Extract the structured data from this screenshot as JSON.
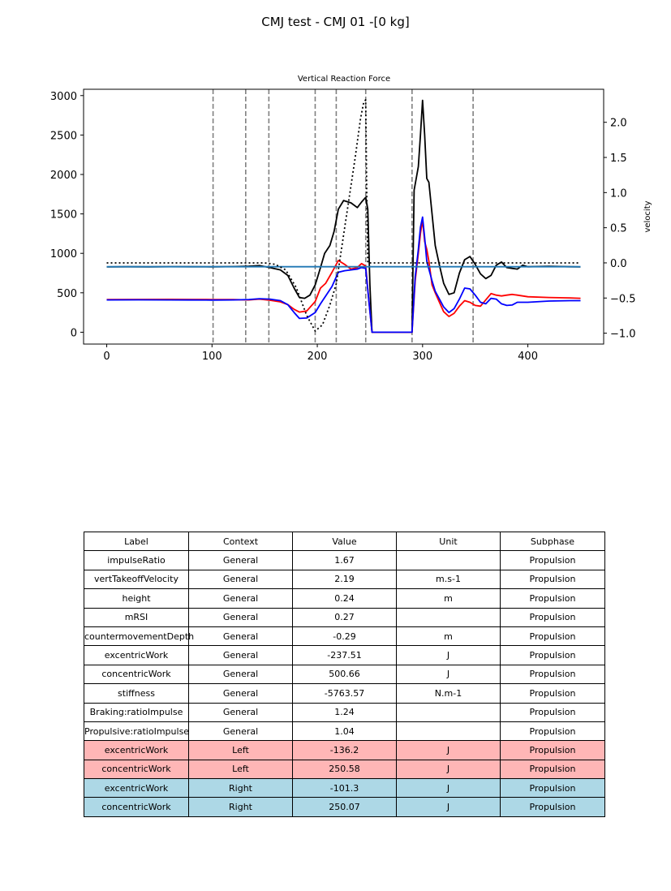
{
  "figure": {
    "title": "CMJ test - CMJ 01 -[0 kg]"
  },
  "chart_data": {
    "type": "line",
    "title": "Vertical Reaction Force",
    "xlabel": "",
    "ylabel": "",
    "y2label": "velocity",
    "xlim": [
      -22,
      472
    ],
    "ylim": [
      -150,
      3080
    ],
    "y2lim": [
      -1.155,
      2.47
    ],
    "x_ticks": [
      0,
      100,
      200,
      300,
      400
    ],
    "y_ticks": [
      0,
      500,
      1000,
      1500,
      2000,
      2500,
      3000
    ],
    "y2_ticks": [
      -1.0,
      -0.5,
      0.0,
      0.5,
      1.0,
      1.5,
      2.0
    ],
    "y2_tick_labels": [
      "−1.0",
      "−0.5",
      "0.0",
      "0.5",
      "1.0",
      "1.5",
      "2.0"
    ],
    "grid": false,
    "vlines": [
      101,
      132,
      154,
      198,
      218,
      246,
      290,
      348
    ],
    "series": [
      {
        "color": "#000000",
        "style": "solid",
        "axis": "left",
        "points": [
          [
            0,
            828
          ],
          [
            20,
            830
          ],
          [
            40,
            829
          ],
          [
            60,
            831
          ],
          [
            80,
            830
          ],
          [
            100,
            829
          ],
          [
            120,
            832
          ],
          [
            135,
            838
          ],
          [
            145,
            845
          ],
          [
            155,
            820
          ],
          [
            165,
            790
          ],
          [
            172,
            720
          ],
          [
            178,
            560
          ],
          [
            183,
            440
          ],
          [
            188,
            430
          ],
          [
            193,
            470
          ],
          [
            198,
            600
          ],
          [
            203,
            820
          ],
          [
            207,
            1000
          ],
          [
            212,
            1100
          ],
          [
            216,
            1280
          ],
          [
            220,
            1560
          ],
          [
            225,
            1670
          ],
          [
            232,
            1640
          ],
          [
            238,
            1580
          ],
          [
            242,
            1650
          ],
          [
            246,
            1710
          ],
          [
            248,
            1560
          ],
          [
            250,
            600
          ],
          [
            252,
            0
          ],
          [
            270,
            0
          ],
          [
            290,
            0
          ],
          [
            292,
            1800
          ],
          [
            294,
            1950
          ],
          [
            296,
            2100
          ],
          [
            298,
            2500
          ],
          [
            300,
            2940
          ],
          [
            302,
            2500
          ],
          [
            304,
            1950
          ],
          [
            306,
            1900
          ],
          [
            309,
            1500
          ],
          [
            312,
            1100
          ],
          [
            316,
            850
          ],
          [
            320,
            620
          ],
          [
            325,
            480
          ],
          [
            330,
            500
          ],
          [
            335,
            750
          ],
          [
            340,
            920
          ],
          [
            345,
            960
          ],
          [
            350,
            860
          ],
          [
            355,
            740
          ],
          [
            360,
            680
          ],
          [
            365,
            720
          ],
          [
            370,
            850
          ],
          [
            375,
            890
          ],
          [
            380,
            820
          ],
          [
            385,
            810
          ],
          [
            390,
            800
          ],
          [
            395,
            850
          ],
          [
            400,
            830
          ],
          [
            420,
            835
          ],
          [
            440,
            830
          ],
          [
            450,
            828
          ]
        ]
      },
      {
        "color": "#ff0000",
        "style": "solid",
        "axis": "left",
        "points": [
          [
            0,
            415
          ],
          [
            30,
            416
          ],
          [
            60,
            417
          ],
          [
            80,
            416
          ],
          [
            100,
            415
          ],
          [
            120,
            414
          ],
          [
            135,
            410
          ],
          [
            145,
            420
          ],
          [
            155,
            405
          ],
          [
            165,
            385
          ],
          [
            172,
            350
          ],
          [
            178,
            290
          ],
          [
            183,
            255
          ],
          [
            190,
            270
          ],
          [
            198,
            390
          ],
          [
            203,
            560
          ],
          [
            208,
            620
          ],
          [
            214,
            760
          ],
          [
            220,
            910
          ],
          [
            226,
            860
          ],
          [
            232,
            800
          ],
          [
            238,
            820
          ],
          [
            242,
            870
          ],
          [
            246,
            840
          ],
          [
            249,
            400
          ],
          [
            252,
            0
          ],
          [
            290,
            0
          ],
          [
            293,
            650
          ],
          [
            296,
            1000
          ],
          [
            298,
            1250
          ],
          [
            300,
            1420
          ],
          [
            302,
            1150
          ],
          [
            304,
            1050
          ],
          [
            306,
            900
          ],
          [
            309,
            600
          ],
          [
            312,
            500
          ],
          [
            316,
            380
          ],
          [
            320,
            260
          ],
          [
            325,
            200
          ],
          [
            330,
            240
          ],
          [
            335,
            330
          ],
          [
            340,
            400
          ],
          [
            345,
            380
          ],
          [
            350,
            340
          ],
          [
            355,
            330
          ],
          [
            360,
            410
          ],
          [
            365,
            490
          ],
          [
            370,
            470
          ],
          [
            375,
            460
          ],
          [
            380,
            470
          ],
          [
            385,
            480
          ],
          [
            390,
            470
          ],
          [
            400,
            450
          ],
          [
            420,
            440
          ],
          [
            440,
            435
          ],
          [
            450,
            430
          ]
        ]
      },
      {
        "color": "#0000ff",
        "style": "solid",
        "axis": "left",
        "points": [
          [
            0,
            410
          ],
          [
            30,
            411
          ],
          [
            60,
            410
          ],
          [
            80,
            409
          ],
          [
            100,
            408
          ],
          [
            120,
            410
          ],
          [
            135,
            415
          ],
          [
            145,
            425
          ],
          [
            155,
            420
          ],
          [
            165,
            400
          ],
          [
            172,
            350
          ],
          [
            178,
            250
          ],
          [
            183,
            175
          ],
          [
            190,
            180
          ],
          [
            198,
            250
          ],
          [
            203,
            360
          ],
          [
            208,
            460
          ],
          [
            214,
            580
          ],
          [
            220,
            760
          ],
          [
            226,
            780
          ],
          [
            232,
            790
          ],
          [
            238,
            800
          ],
          [
            242,
            820
          ],
          [
            246,
            810
          ],
          [
            249,
            400
          ],
          [
            252,
            0
          ],
          [
            290,
            0
          ],
          [
            293,
            700
          ],
          [
            296,
            1050
          ],
          [
            298,
            1330
          ],
          [
            300,
            1460
          ],
          [
            302,
            1200
          ],
          [
            304,
            900
          ],
          [
            306,
            800
          ],
          [
            309,
            650
          ],
          [
            312,
            520
          ],
          [
            316,
            420
          ],
          [
            320,
            320
          ],
          [
            325,
            250
          ],
          [
            330,
            300
          ],
          [
            335,
            420
          ],
          [
            340,
            560
          ],
          [
            345,
            550
          ],
          [
            350,
            470
          ],
          [
            355,
            380
          ],
          [
            360,
            360
          ],
          [
            365,
            430
          ],
          [
            370,
            420
          ],
          [
            375,
            360
          ],
          [
            380,
            340
          ],
          [
            385,
            345
          ],
          [
            390,
            380
          ],
          [
            400,
            380
          ],
          [
            420,
            395
          ],
          [
            440,
            400
          ],
          [
            450,
            400
          ]
        ]
      },
      {
        "color": "#1f77b4",
        "style": "solid",
        "axis": "left",
        "points": [
          [
            0,
            830
          ],
          [
            450,
            830
          ]
        ]
      },
      {
        "color": "#000000",
        "style": "dotted",
        "axis": "right",
        "points": [
          [
            0,
            0.0
          ],
          [
            100,
            0.0
          ],
          [
            150,
            0.0
          ],
          [
            160,
            -0.02
          ],
          [
            170,
            -0.1
          ],
          [
            180,
            -0.35
          ],
          [
            190,
            -0.75
          ],
          [
            198,
            -0.97
          ],
          [
            205,
            -0.88
          ],
          [
            212,
            -0.6
          ],
          [
            218,
            -0.3
          ],
          [
            224,
            0.3
          ],
          [
            230,
            0.9
          ],
          [
            236,
            1.5
          ],
          [
            241,
            2.05
          ],
          [
            244,
            2.28
          ],
          [
            246,
            2.32
          ],
          [
            247,
            1.0
          ],
          [
            248,
            0.0
          ],
          [
            290,
            0.0
          ],
          [
            300,
            0.0
          ],
          [
            450,
            0.0
          ]
        ]
      }
    ]
  },
  "table": {
    "headers": [
      "Label",
      "Context",
      "Value",
      "Unit",
      "Subphase"
    ],
    "rows": [
      {
        "label": "impulseRatio",
        "context": "General",
        "value": "1.67",
        "unit": "",
        "subphase": "Propulsion",
        "bg": "#ffffff"
      },
      {
        "label": "vertTakeoffVelocity",
        "context": "General",
        "value": "2.19",
        "unit": "m.s-1",
        "subphase": "Propulsion",
        "bg": "#ffffff"
      },
      {
        "label": "height",
        "context": "General",
        "value": "0.24",
        "unit": "m",
        "subphase": "Propulsion",
        "bg": "#ffffff"
      },
      {
        "label": "mRSI",
        "context": "General",
        "value": "0.27",
        "unit": "",
        "subphase": "Propulsion",
        "bg": "#ffffff"
      },
      {
        "label": "countermovementDepth",
        "context": "General",
        "value": "-0.29",
        "unit": "m",
        "subphase": "Propulsion",
        "bg": "#ffffff"
      },
      {
        "label": "excentricWork",
        "context": "General",
        "value": "-237.51",
        "unit": "J",
        "subphase": "Propulsion",
        "bg": "#ffffff"
      },
      {
        "label": "concentricWork",
        "context": "General",
        "value": "500.66",
        "unit": "J",
        "subphase": "Propulsion",
        "bg": "#ffffff"
      },
      {
        "label": "stiffness",
        "context": "General",
        "value": "-5763.57",
        "unit": "N.m-1",
        "subphase": "Propulsion",
        "bg": "#ffffff"
      },
      {
        "label": "Braking:ratioImpulse",
        "context": "General",
        "value": "1.24",
        "unit": "",
        "subphase": "Propulsion",
        "bg": "#ffffff"
      },
      {
        "label": "Propulsive:ratioImpulse",
        "context": "General",
        "value": "1.04",
        "unit": "",
        "subphase": "Propulsion",
        "bg": "#ffffff"
      },
      {
        "label": "excentricWork",
        "context": "Left",
        "value": "-136.2",
        "unit": "J",
        "subphase": "Propulsion",
        "bg": "#ffb6b6"
      },
      {
        "label": "concentricWork",
        "context": "Left",
        "value": "250.58",
        "unit": "J",
        "subphase": "Propulsion",
        "bg": "#ffb6b6"
      },
      {
        "label": "excentricWork",
        "context": "Right",
        "value": "-101.3",
        "unit": "J",
        "subphase": "Propulsion",
        "bg": "#add8e6"
      },
      {
        "label": "concentricWork",
        "context": "Right",
        "value": "250.07",
        "unit": "J",
        "subphase": "Propulsion",
        "bg": "#add8e6"
      }
    ]
  }
}
